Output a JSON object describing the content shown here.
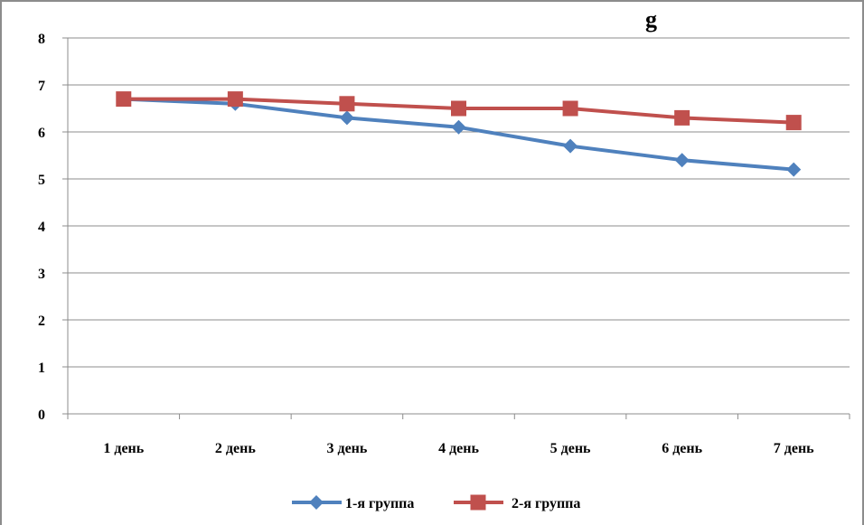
{
  "chart_data": {
    "type": "line",
    "title_fragment": "g",
    "categories": [
      "1 день",
      "2 день",
      "3 день",
      "4 день",
      "5 день",
      "6 день",
      "7 день"
    ],
    "series": [
      {
        "name": "1-я группа",
        "values": [
          6.7,
          6.6,
          6.3,
          6.1,
          5.7,
          5.4,
          5.2
        ],
        "color": "#4f81bd",
        "marker": "diamond"
      },
      {
        "name": "2-я группа",
        "values": [
          6.7,
          6.7,
          6.6,
          6.5,
          6.5,
          6.3,
          6.2
        ],
        "color": "#c0504d",
        "marker": "square"
      }
    ],
    "ylim": [
      0,
      8
    ],
    "yticks": [
      "0",
      "1",
      "2",
      "3",
      "4",
      "5",
      "6",
      "7",
      "8"
    ],
    "grid": true,
    "legend_position": "bottom"
  }
}
